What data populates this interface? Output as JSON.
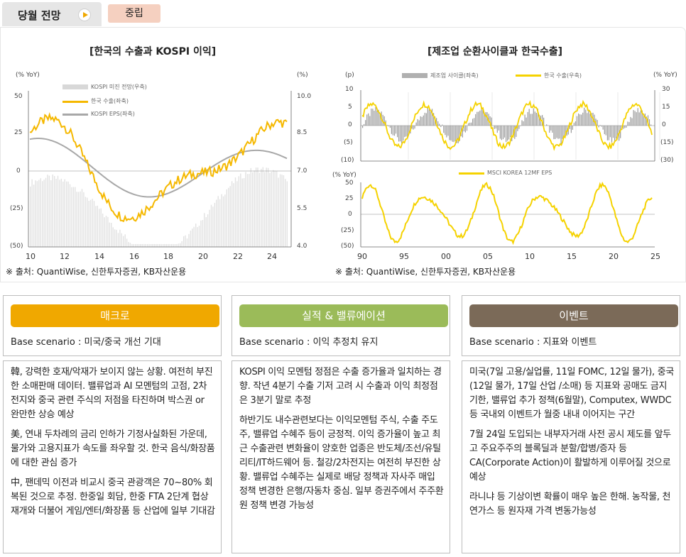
{
  "tab": {
    "title": "당월 전망",
    "icon": "play-icon",
    "badge": "중립"
  },
  "chart1": {
    "title": "[한국의 수출과 KOSPI 이익]",
    "left_unit": "(% YoY)",
    "right_unit": "(%)",
    "legend": [
      "KOSPI 미진 전망(우축)",
      "한국 수출(좌축)",
      "KOSPI EPS(좌축)"
    ],
    "left_ticks": [
      "50",
      "25",
      "0",
      "(25)",
      "(50)"
    ],
    "right_ticks": [
      "10.0",
      "8.5",
      "7.0",
      "5.5",
      "4.0"
    ],
    "x_ticks": [
      "10",
      "12",
      "14",
      "16",
      "18",
      "20",
      "22",
      "24"
    ],
    "source": "※ 출처: QuantiWise, 신한투자증권, KB자산운용"
  },
  "chart2": {
    "title": "[제조업 순환사이클과 한국수출]",
    "top_left_unit": "(p)",
    "top_right_unit": "(% YoY)",
    "top_legend": [
      "제조업 사이클(좌축)",
      "한국 수출(우축)"
    ],
    "top_left_ticks": [
      "10",
      "5",
      "0",
      "(5)",
      "(10)"
    ],
    "top_right_ticks": [
      "30",
      "15",
      "0",
      "(15)",
      "(30)"
    ],
    "bottom_unit": "(% YoY)",
    "bottom_legend": "MSCI KOREA 12MF EPS",
    "bottom_ticks": [
      "50",
      "25",
      "0",
      "(25)",
      "(50)"
    ],
    "x_ticks": [
      "90",
      "95",
      "00",
      "05",
      "10",
      "15",
      "20",
      "25"
    ],
    "source": "※ 출처: QuantiWise, 신한투자증권, KB자산운용"
  },
  "columns": [
    {
      "header": "매크로",
      "color": "#f0a800",
      "base": "Base scenario : 미국/중국 개선 기대",
      "paragraphs": [
        "韓, 강력한 호재/악재가 보이지 않는 상황. 여전히 부진한 소매판매 데이터. 밸류업과 AI 모멘텀의 고점, 2차 전지와 중국 관련 주식의 저점을 타진하며 박스권 or 완만한 상승 예상",
        "美, 연내 두차례의 금리 인하가 기정사실화된 가운데, 물가와 고용지표가 속도를 좌우할 것. 한국 음식/화장품에 대한 관심 증가",
        "中, 팬데믹 이전과 비교시 중국 관광객은 70~80% 회복된 것으로 추정. 한중일 회담, 한중 FTA 2단계 협상 재개와 더불어 게임/엔터/화장품 등 산업에 일부 기대감"
      ]
    },
    {
      "header": "실적 & 밸류에이션",
      "color": "#9bbb59",
      "base": "Base scenario : 이익 추정치 유지",
      "paragraphs": [
        "KOSPI 이익 모멘텀 정점은 수출 증가율과 일치하는 경향. 작년 4분기 수출 기저 고려 시 수출과 이익 최정점은 3분기 말로 추정",
        "하반기도 내수관련보다는 이익모멘텀 주식, 수출 주도주, 밸류업 수혜주 등이 긍정적. 이익 증가율이 높고 최근 수출관련 변화율이 양호한 업종은 반도체/조선/유틸리티/IT하드웨어 등. 철강/2차전지는 여전히 부진한 상황.   밸류업 수혜주는 실제로 배당 정책과 자사주 매입 정책 변경한 은행/자동차 중심. 일부 증권주에서 주주환원 정책 변경 가능성"
      ]
    },
    {
      "header": "이벤트",
      "color": "#7b6a58",
      "base": "Base scenario : 지표와 이벤트",
      "paragraphs": [
        "미국(7일 고용/실업률, 11일 FOMC, 12일 물가), 중국(12일 물가, 17일 산업 /소매) 등 지표와 공매도 금지기한, 밸류업 추가 정책(6월말), Computex, WWDC 등 국내외 이벤트가 월중 내내 이어지는 구간",
        "7월 24일 도입되는 내부자거래 사전 공시 제도를 앞두고 주요주주의 블록딜과  분할/합병/증자 등 CA(Corporate Action)이 활발하게 이루어질 것으로 예상",
        "라니냐 등 기상이변 확률이 매우 높은 한해. 농작물, 천연가스 등 원자재 가격 변동가능성"
      ]
    }
  ]
}
